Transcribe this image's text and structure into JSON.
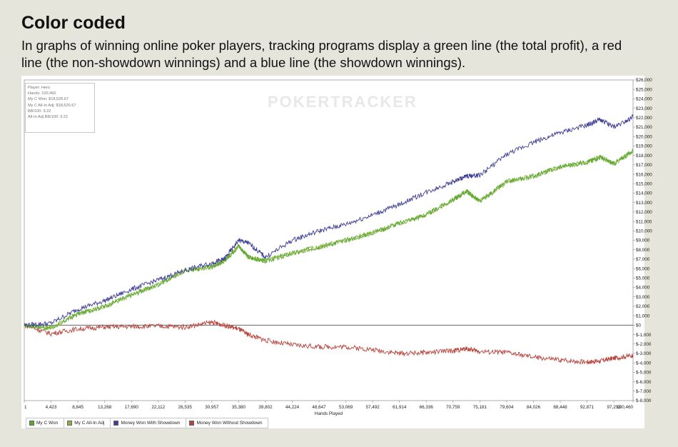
{
  "header": {
    "title": "Color coded",
    "subtitle": "In graphs of winning online poker players, tracking programs display a green line (the total profit), a red line (the non-showdown winnings) and a blue line (the showdown winnings)."
  },
  "watermark": "POKERTRACKER",
  "info_box": {
    "lines": [
      "Player: Hero",
      "Hands: 100,460",
      "My C Won: $18,526.67",
      "My C All-In Adj: $18,526.67",
      "BB/100: 9.22",
      "All-In Adj BB/100: 9.22"
    ]
  },
  "chart_data": {
    "type": "line",
    "xlabel": "Hands Played",
    "ylabel": "",
    "xlim": [
      1,
      100460
    ],
    "ylim": [
      -8000,
      26000
    ],
    "x_ticks": [
      "1",
      "4,423",
      "8,845",
      "13,268",
      "17,690",
      "22,112",
      "26,535",
      "30,957",
      "35,380",
      "39,802",
      "44,224",
      "48,647",
      "53,069",
      "57,492",
      "61,914",
      "66,336",
      "70,759",
      "75,181",
      "79,604",
      "84,026",
      "88,448",
      "92,871",
      "97,293",
      "100,460"
    ],
    "y_ticks": [
      "$26,000",
      "$25,000",
      "$24,000",
      "$23,000",
      "$22,000",
      "$21,000",
      "$20,000",
      "$19,000",
      "$18,000",
      "$17,000",
      "$16,000",
      "$15,000",
      "$14,000",
      "$13,000",
      "$12,000",
      "$11,000",
      "$10,000",
      "$9,000",
      "$8,000",
      "$7,000",
      "$6,000",
      "$5,000",
      "$4,000",
      "$3,000",
      "$2,000",
      "$1,000",
      "$0",
      "$-1,000",
      "$-2,000",
      "$-3,000",
      "$-4,000",
      "$-5,000",
      "$-6,000",
      "$-7,000",
      "$-8,000"
    ],
    "legend_position": "bottom-left",
    "x": [
      1,
      4423,
      8845,
      13268,
      17690,
      22112,
      26535,
      30957,
      33000,
      35380,
      37000,
      39802,
      44224,
      48647,
      53069,
      57492,
      61914,
      66336,
      70759,
      73000,
      75181,
      79604,
      84026,
      88448,
      92871,
      95000,
      97293,
      100460
    ],
    "series": [
      {
        "name": "My C Won",
        "color": "#5aa832",
        "values": [
          0,
          -300,
          1200,
          2000,
          3200,
          4300,
          5800,
          6200,
          6800,
          8400,
          7200,
          6800,
          7600,
          8300,
          9000,
          9800,
          10800,
          11700,
          13300,
          14200,
          13100,
          15200,
          15800,
          16800,
          17300,
          17800,
          17100,
          18500
        ]
      },
      {
        "name": "My C All-In Adj",
        "color": "#8ab23c",
        "values": [
          0,
          -300,
          1200,
          2000,
          3200,
          4300,
          5800,
          6200,
          6800,
          8400,
          7200,
          6800,
          7600,
          8300,
          9000,
          9800,
          10800,
          11700,
          13300,
          14200,
          13100,
          15200,
          15800,
          16800,
          17300,
          17800,
          17100,
          18500
        ]
      },
      {
        "name": "Money Won With Showdown",
        "color": "#3d3d96",
        "values": [
          0,
          200,
          1700,
          2600,
          3800,
          4800,
          5800,
          6600,
          7000,
          9000,
          8700,
          7200,
          9000,
          10000,
          10700,
          11700,
          12800,
          14100,
          15200,
          15800,
          15900,
          18100,
          19400,
          20400,
          21200,
          21800,
          21000,
          22100
        ]
      },
      {
        "name": "Money Won Without Showdown",
        "color": "#b8433c",
        "values": [
          0,
          -900,
          -400,
          -200,
          -150,
          -100,
          -200,
          300,
          0,
          -400,
          -1000,
          -1600,
          -2100,
          -2300,
          -2300,
          -2600,
          -3000,
          -2900,
          -2700,
          -2500,
          -2800,
          -2900,
          -3400,
          -3700,
          -3900,
          -3800,
          -3500,
          -3200
        ]
      }
    ]
  }
}
